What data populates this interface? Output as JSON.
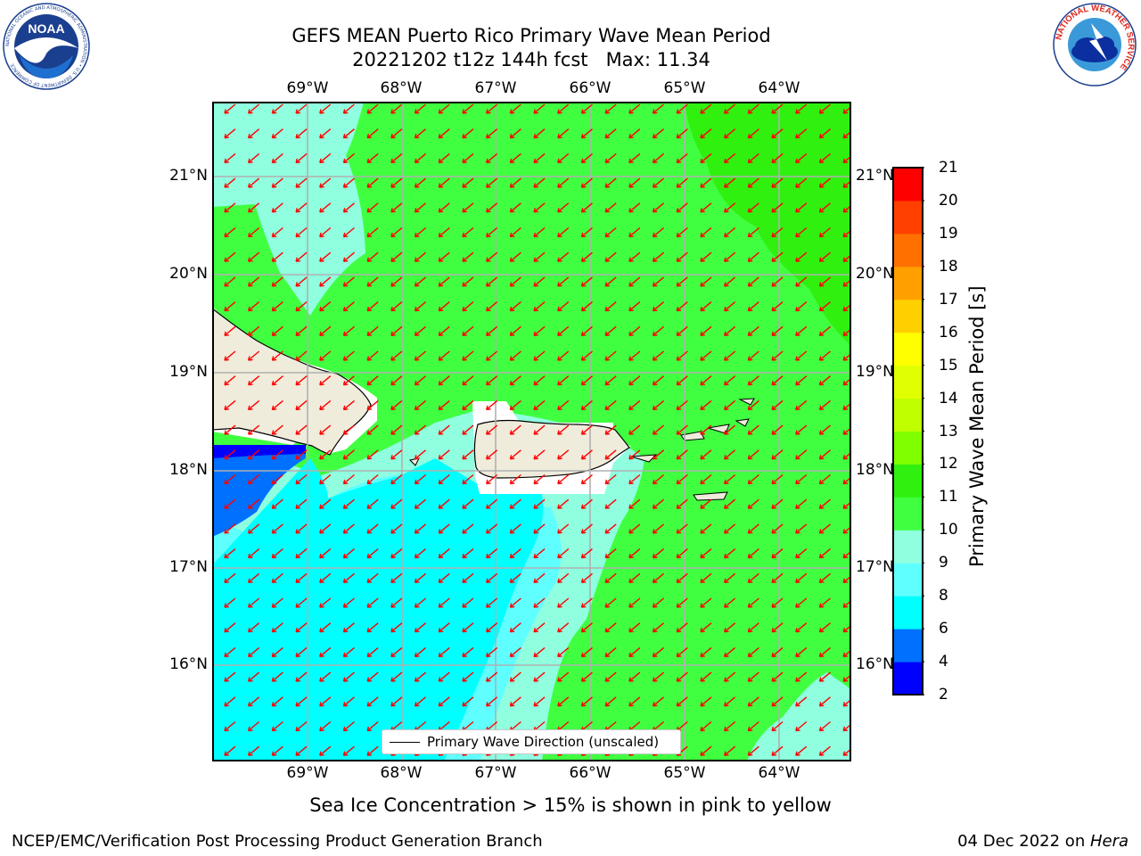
{
  "title": {
    "line1": "GEFS MEAN Puerto Rico Primary Wave Mean Period",
    "line2": "20221202 t12z 144h fcst   Max: 11.34"
  },
  "logos": {
    "left": {
      "text": "NOAA",
      "icon": "noaa-logo",
      "ring_text": "NATIONAL OCEANIC AND ATMOSPHERIC ADMINISTRATION • U.S. DEPARTMENT OF COMMERCE"
    },
    "right": {
      "icon": "nws-logo",
      "ring_text": "NATIONAL WEATHER SERVICE"
    }
  },
  "map": {
    "lon_ticks": [
      "69°W",
      "68°W",
      "67°W",
      "66°W",
      "65°W",
      "64°W"
    ],
    "lat_ticks": [
      "21°N",
      "20°N",
      "19°N",
      "18°N",
      "17°N",
      "16°N"
    ],
    "legend": {
      "label": "Primary Wave Direction (unscaled)"
    },
    "arrow_color": "#ff0000",
    "land_color": "#efecdc",
    "fill_colors": {
      "4-6": "#0070ff",
      "6-8": "#00ffff",
      "8-9": "#60ffff",
      "9-10": "#90ffe0",
      "10-11": "#40ff40",
      "11-12": "#30f010"
    }
  },
  "colorbar": {
    "label": "Primary Wave Mean Period [s]",
    "ticks": [
      "21",
      "20",
      "19",
      "18",
      "17",
      "16",
      "15",
      "14",
      "13",
      "12",
      "11",
      "10",
      "9",
      "8",
      "6",
      "4",
      "2"
    ],
    "colors_bottom_to_top": [
      "#0000ff",
      "#0070ff",
      "#00ffff",
      "#60ffff",
      "#90ffe0",
      "#40ff40",
      "#30f010",
      "#80ff00",
      "#bfff00",
      "#e0ff00",
      "#ffff00",
      "#ffd000",
      "#ffa000",
      "#ff7000",
      "#ff4000",
      "#ff0000"
    ]
  },
  "sea_ice_note": "Sea Ice Concentration > 15% is shown in pink to yellow",
  "footer": {
    "left": "NCEP/EMC/Verification Post Processing Product Generation Branch",
    "right_date": "04 Dec 2022 on ",
    "right_machine": "Hera"
  }
}
